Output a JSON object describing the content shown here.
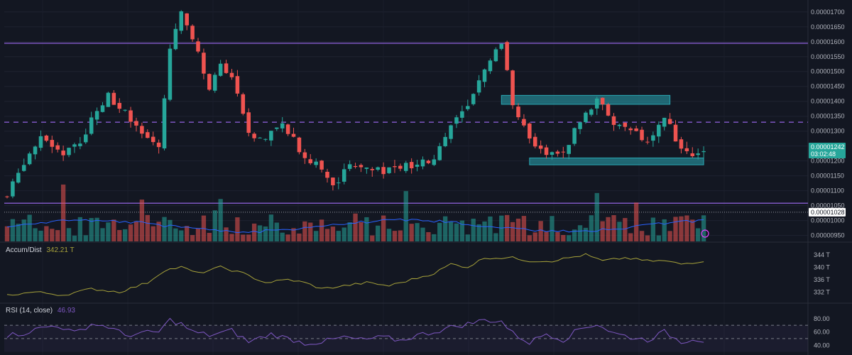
{
  "colors": {
    "background": "#131722",
    "bull": "#26a69a",
    "bear": "#ef5350",
    "purple_line": "#7e57c2",
    "zone": "#2aa8b4",
    "accum": "#a7a23a",
    "rsi": "#7e57c2",
    "volume_ma": "#2962ff"
  },
  "price_axis": {
    "ticks": [
      "0.00001700",
      "0.00001650",
      "0.00001600",
      "0.00001550",
      "0.00001500",
      "0.00001450",
      "0.00001400",
      "0.00001350",
      "0.00001300",
      "0.00001250",
      "0.00001200",
      "0.00001150",
      "0.00001100",
      "0.00001050",
      "0.00001000",
      "0.00000950"
    ],
    "current_price": "0.00001242",
    "countdown": "03:02:48",
    "level_tag": "0.00001028"
  },
  "accum_pane": {
    "title": "Accum/Dist",
    "value": "342.21 T",
    "ticks": [
      "344 T",
      "340 T",
      "336 T",
      "332 T"
    ]
  },
  "rsi_pane": {
    "title": "RSI (14, close)",
    "value": "46.93",
    "ticks": [
      "80.00",
      "60.00",
      "40.00"
    ]
  },
  "chart_data": {
    "type": "candlestick",
    "price_range": [
      9.3e-06,
      1.74e-05
    ],
    "horizontal_levels": [
      {
        "price": 1.595e-05,
        "style": "solid"
      },
      {
        "price": 1.33e-05,
        "style": "dashed"
      },
      {
        "price": 1.058e-05,
        "style": "solid"
      },
      {
        "price": 1.028e-05,
        "style": "dotted"
      }
    ],
    "zones": [
      {
        "start_index": 88,
        "end_index": 118,
        "low": 1.39e-05,
        "high": 1.42e-05
      },
      {
        "start_index": 93,
        "end_index": 124,
        "low": 1.187e-05,
        "high": 1.21e-05
      }
    ],
    "close_path": [
      [
        0,
        1.08e-05
      ],
      [
        3,
        1.2e-05
      ],
      [
        6,
        1.27e-05
      ],
      [
        10,
        1.23e-05
      ],
      [
        13,
        1.26e-05
      ],
      [
        16,
        1.38e-05
      ],
      [
        18,
        1.42e-05
      ],
      [
        21,
        1.36e-05
      ],
      [
        24,
        1.28e-05
      ],
      [
        27,
        1.26e-05
      ],
      [
        29,
        1.58e-05
      ],
      [
        31,
        1.7e-05
      ],
      [
        33,
        1.62e-05
      ],
      [
        36,
        1.43e-05
      ],
      [
        38,
        1.52e-05
      ],
      [
        40,
        1.48e-05
      ],
      [
        43,
        1.28e-05
      ],
      [
        46,
        1.27e-05
      ],
      [
        49,
        1.33e-05
      ],
      [
        51,
        1.28e-05
      ],
      [
        53,
        1.2e-05
      ],
      [
        56,
        1.18e-05
      ],
      [
        58,
        1.12e-05
      ],
      [
        61,
        1.18e-05
      ],
      [
        64,
        1.19e-05
      ],
      [
        67,
        1.17e-05
      ],
      [
        70,
        1.18e-05
      ],
      [
        73,
        1.18e-05
      ],
      [
        76,
        1.21e-05
      ],
      [
        79,
        1.32e-05
      ],
      [
        82,
        1.38e-05
      ],
      [
        85,
        1.5e-05
      ],
      [
        88,
        1.6e-05
      ],
      [
        90,
        1.4e-05
      ],
      [
        93,
        1.27e-05
      ],
      [
        96,
        1.22e-05
      ],
      [
        99,
        1.23e-05
      ],
      [
        102,
        1.33e-05
      ],
      [
        105,
        1.41e-05
      ],
      [
        108,
        1.33e-05
      ],
      [
        111,
        1.3e-05
      ],
      [
        114,
        1.26e-05
      ],
      [
        117,
        1.34e-05
      ],
      [
        120,
        1.25e-05
      ],
      [
        122,
        1.23e-05
      ],
      [
        124,
        1.24e-05
      ]
    ],
    "accum_path": [
      [
        0,
        331
      ],
      [
        5,
        332
      ],
      [
        10,
        331
      ],
      [
        15,
        333
      ],
      [
        20,
        332
      ],
      [
        25,
        335
      ],
      [
        28,
        339
      ],
      [
        31,
        340
      ],
      [
        34,
        338
      ],
      [
        38,
        340
      ],
      [
        42,
        338
      ],
      [
        46,
        335
      ],
      [
        50,
        336
      ],
      [
        53,
        335
      ],
      [
        56,
        333
      ],
      [
        60,
        334
      ],
      [
        64,
        335
      ],
      [
        68,
        334
      ],
      [
        72,
        336
      ],
      [
        76,
        338
      ],
      [
        79,
        341
      ],
      [
        82,
        340
      ],
      [
        85,
        343
      ],
      [
        88,
        343
      ],
      [
        90,
        343
      ],
      [
        93,
        342
      ],
      [
        97,
        342
      ],
      [
        100,
        343
      ],
      [
        103,
        344
      ],
      [
        106,
        342
      ],
      [
        110,
        343
      ],
      [
        114,
        342
      ],
      [
        117,
        342
      ],
      [
        120,
        341
      ],
      [
        124,
        342
      ]
    ],
    "accum_range": [
      330,
      346
    ],
    "rsi_path": [
      [
        0,
        55
      ],
      [
        3,
        58
      ],
      [
        6,
        66
      ],
      [
        9,
        70
      ],
      [
        12,
        58
      ],
      [
        15,
        72
      ],
      [
        18,
        68
      ],
      [
        21,
        55
      ],
      [
        24,
        58
      ],
      [
        27,
        60
      ],
      [
        29,
        78
      ],
      [
        31,
        72
      ],
      [
        33,
        60
      ],
      [
        36,
        55
      ],
      [
        40,
        62
      ],
      [
        43,
        45
      ],
      [
        47,
        57
      ],
      [
        50,
        50
      ],
      [
        53,
        43
      ],
      [
        56,
        45
      ],
      [
        60,
        52
      ],
      [
        63,
        48
      ],
      [
        67,
        52
      ],
      [
        70,
        47
      ],
      [
        73,
        55
      ],
      [
        76,
        60
      ],
      [
        79,
        67
      ],
      [
        82,
        72
      ],
      [
        85,
        78
      ],
      [
        88,
        76
      ],
      [
        90,
        58
      ],
      [
        93,
        44
      ],
      [
        96,
        58
      ],
      [
        99,
        48
      ],
      [
        102,
        65
      ],
      [
        105,
        72
      ],
      [
        108,
        58
      ],
      [
        111,
        52
      ],
      [
        114,
        48
      ],
      [
        117,
        60
      ],
      [
        120,
        45
      ],
      [
        122,
        50
      ],
      [
        124,
        47
      ]
    ],
    "rsi_range": [
      20,
      100
    ],
    "rsi_bands": [
      70,
      50
    ]
  }
}
